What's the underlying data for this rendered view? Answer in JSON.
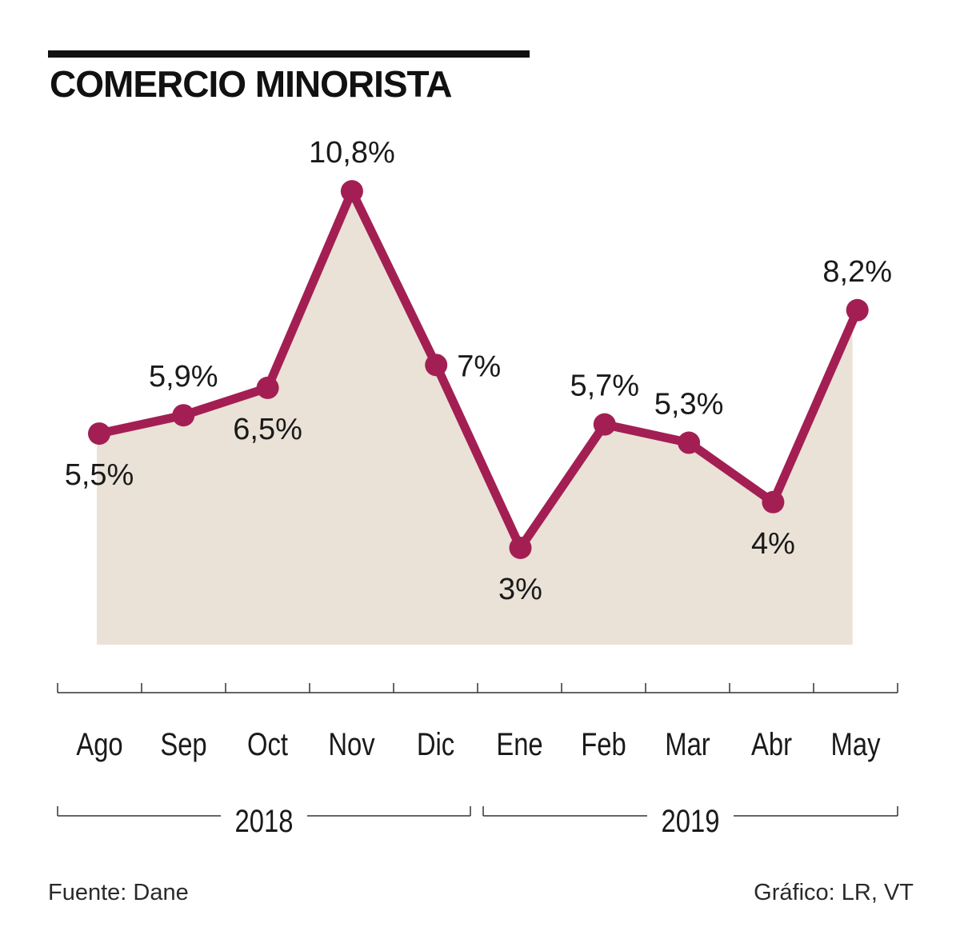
{
  "chart_data": {
    "type": "line",
    "title": "COMERCIO MINORISTA",
    "categories": [
      "Ago",
      "Sep",
      "Oct",
      "Nov",
      "Dic",
      "Ene",
      "Feb",
      "Mar",
      "Abr",
      "May"
    ],
    "series": [
      {
        "name": "Comercio minorista",
        "values": [
          5.5,
          5.9,
          6.5,
          10.8,
          7.0,
          3.0,
          5.7,
          5.3,
          4.0,
          8.2
        ],
        "labels": [
          "5,5%",
          "5,9%",
          "6,5%",
          "10,8%",
          "7%",
          "3%",
          "5,7%",
          "5,3%",
          "4%",
          "8,2%"
        ],
        "label_positions": [
          "below",
          "above",
          "below",
          "above",
          "right",
          "below",
          "above",
          "above",
          "below",
          "above"
        ]
      }
    ],
    "year_groups": [
      {
        "label": "2018",
        "categories": [
          "Ago",
          "Sep",
          "Oct",
          "Nov",
          "Dic"
        ]
      },
      {
        "label": "2019",
        "categories": [
          "Ene",
          "Feb",
          "Mar",
          "Abr",
          "May"
        ]
      }
    ],
    "xlabel": "",
    "ylabel": "",
    "ylim": [
      -0.5,
      12.5
    ],
    "grid": false,
    "legend": "none"
  },
  "colors": {
    "line": "#A31F53",
    "area": "#EAE2D6",
    "text": "#1a1a1a",
    "axis": "#333333"
  },
  "footer": {
    "source": "Fuente: Dane",
    "credit": "Gráfico: LR, VT"
  }
}
